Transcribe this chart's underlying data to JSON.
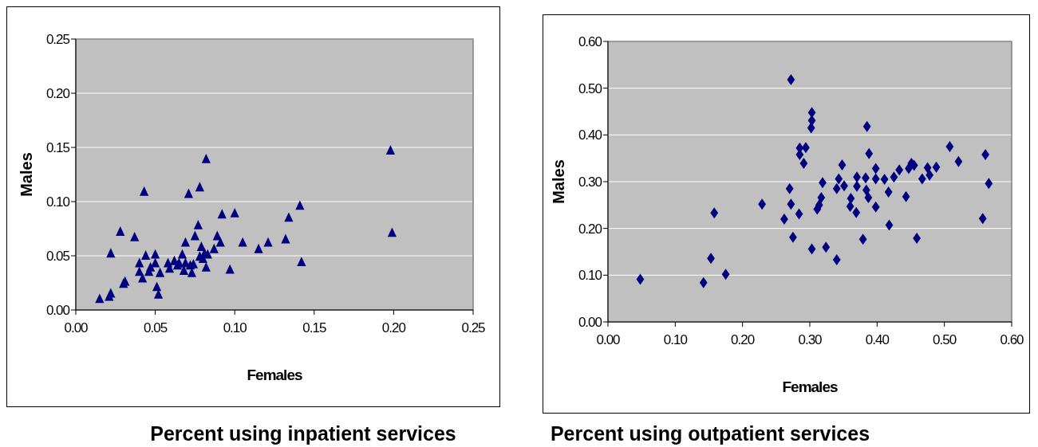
{
  "chart_data": [
    {
      "type": "scatter",
      "title": "Percent using inpatient services",
      "xlabel": "Females",
      "ylabel": "Males",
      "marker": "triangle",
      "grid": "y",
      "xlim": [
        0,
        0.25
      ],
      "ylim": [
        0,
        0.25
      ],
      "xticks": [
        {
          "value": 0,
          "label": "0.00"
        },
        {
          "value": 0.05,
          "label": "0.05"
        },
        {
          "value": 0.1,
          "label": "0.10"
        },
        {
          "value": 0.15,
          "label": "0.15"
        },
        {
          "value": 0.2,
          "label": "0.20"
        },
        {
          "value": 0.25,
          "label": "0.25"
        }
      ],
      "yticks": [
        {
          "value": 0,
          "label": "0.00"
        },
        {
          "value": 0.05,
          "label": "0.05"
        },
        {
          "value": 0.1,
          "label": "0.10"
        },
        {
          "value": 0.15,
          "label": "0.15"
        },
        {
          "value": 0.2,
          "label": "0.20"
        },
        {
          "value": 0.25,
          "label": "0.25"
        }
      ],
      "series": [
        {
          "color": "#000080",
          "x": [
            0.015,
            0.021,
            0.022,
            0.022,
            0.028,
            0.03,
            0.031,
            0.037,
            0.04,
            0.04,
            0.042,
            0.043,
            0.044,
            0.046,
            0.047,
            0.05,
            0.05,
            0.051,
            0.052,
            0.053,
            0.058,
            0.059,
            0.062,
            0.064,
            0.065,
            0.067,
            0.068,
            0.069,
            0.069,
            0.071,
            0.072,
            0.073,
            0.074,
            0.075,
            0.077,
            0.078,
            0.078,
            0.079,
            0.08,
            0.081,
            0.082,
            0.082,
            0.083,
            0.087,
            0.089,
            0.091,
            0.092,
            0.097,
            0.1,
            0.105,
            0.115,
            0.121,
            0.132,
            0.134,
            0.141,
            0.142,
            0.198,
            0.199
          ],
          "values": [
            0.01,
            0.012,
            0.015,
            0.052,
            0.072,
            0.024,
            0.026,
            0.067,
            0.043,
            0.035,
            0.029,
            0.109,
            0.05,
            0.035,
            0.039,
            0.043,
            0.051,
            0.021,
            0.014,
            0.034,
            0.043,
            0.038,
            0.045,
            0.041,
            0.043,
            0.051,
            0.036,
            0.043,
            0.062,
            0.107,
            0.041,
            0.034,
            0.042,
            0.068,
            0.078,
            0.049,
            0.113,
            0.058,
            0.047,
            0.052,
            0.139,
            0.039,
            0.051,
            0.056,
            0.068,
            0.062,
            0.088,
            0.037,
            0.089,
            0.062,
            0.056,
            0.062,
            0.065,
            0.085,
            0.096,
            0.044,
            0.147,
            0.071
          ]
        }
      ]
    },
    {
      "type": "scatter",
      "title": "Percent using outpatient services",
      "xlabel": "Females",
      "ylabel": "Males",
      "marker": "diamond",
      "grid": "y",
      "xlim": [
        0,
        0.6
      ],
      "ylim": [
        0,
        0.6
      ],
      "xticks": [
        {
          "value": 0,
          "label": "0.00"
        },
        {
          "value": 0.1,
          "label": "0.10"
        },
        {
          "value": 0.2,
          "label": "0.20"
        },
        {
          "value": 0.3,
          "label": "0.30"
        },
        {
          "value": 0.4,
          "label": "0.40"
        },
        {
          "value": 0.5,
          "label": "0.50"
        },
        {
          "value": 0.6,
          "label": "0.60"
        }
      ],
      "yticks": [
        {
          "value": 0,
          "label": "0.00"
        },
        {
          "value": 0.1,
          "label": "0.10"
        },
        {
          "value": 0.2,
          "label": "0.20"
        },
        {
          "value": 0.3,
          "label": "0.30"
        },
        {
          "value": 0.4,
          "label": "0.40"
        },
        {
          "value": 0.5,
          "label": "0.50"
        },
        {
          "value": 0.6,
          "label": "0.60"
        }
      ],
      "series": [
        {
          "color": "#000080",
          "x": [
            0.048,
            0.142,
            0.153,
            0.158,
            0.175,
            0.229,
            0.262,
            0.27,
            0.272,
            0.272,
            0.275,
            0.284,
            0.285,
            0.285,
            0.291,
            0.294,
            0.303,
            0.303,
            0.302,
            0.303,
            0.311,
            0.324,
            0.34,
            0.314,
            0.317,
            0.319,
            0.34,
            0.343,
            0.348,
            0.351,
            0.361,
            0.36,
            0.369,
            0.37,
            0.37,
            0.379,
            0.383,
            0.384,
            0.387,
            0.385,
            0.388,
            0.398,
            0.398,
            0.398,
            0.411,
            0.417,
            0.418,
            0.425,
            0.433,
            0.443,
            0.447,
            0.451,
            0.455,
            0.459,
            0.467,
            0.475,
            0.478,
            0.488,
            0.508,
            0.521,
            0.561,
            0.566,
            0.557
          ],
          "values": [
            0.091,
            0.084,
            0.136,
            0.233,
            0.102,
            0.252,
            0.22,
            0.285,
            0.518,
            0.252,
            0.181,
            0.231,
            0.372,
            0.358,
            0.339,
            0.373,
            0.448,
            0.431,
            0.415,
            0.156,
            0.241,
            0.16,
            0.133,
            0.25,
            0.266,
            0.298,
            0.285,
            0.306,
            0.336,
            0.291,
            0.264,
            0.247,
            0.234,
            0.29,
            0.31,
            0.177,
            0.308,
            0.282,
            0.266,
            0.418,
            0.36,
            0.328,
            0.306,
            0.246,
            0.305,
            0.278,
            0.207,
            0.31,
            0.325,
            0.268,
            0.328,
            0.339,
            0.335,
            0.179,
            0.306,
            0.33,
            0.314,
            0.331,
            0.375,
            0.343,
            0.358,
            0.296,
            0.221
          ]
        }
      ]
    }
  ]
}
